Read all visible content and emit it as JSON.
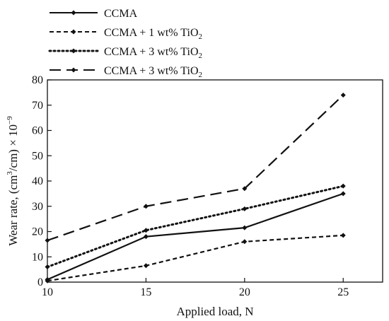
{
  "chart_data": {
    "type": "line",
    "xlabel": "Applied load, N",
    "ylabel_parts": [
      "Wear rate, (cm",
      "3",
      "/cm) × 10",
      "−9"
    ],
    "x": [
      10,
      15,
      20,
      25
    ],
    "xlim": [
      10,
      27
    ],
    "ylim": [
      0,
      80
    ],
    "xticks": [
      "10",
      "15",
      "20",
      "25"
    ],
    "yticks": [
      "0",
      "10",
      "20",
      "30",
      "40",
      "50",
      "60",
      "70",
      "80"
    ],
    "grid": false,
    "legend_position": "top-left, above plot",
    "series": [
      {
        "name": "CCMA",
        "name_parts": [
          "CCMA",
          "",
          ""
        ],
        "values": [
          1,
          18,
          21.5,
          35
        ],
        "style": "solid"
      },
      {
        "name": "CCMA + 1 wt% TiO2",
        "name_parts": [
          "CCMA + 1 wt% TiO",
          "2",
          ""
        ],
        "values": [
          0.5,
          6.5,
          16,
          18.5
        ],
        "style": "short-dash"
      },
      {
        "name": "CCMA + 3 wt% TiO2",
        "name_parts": [
          "CCMA + 3 wt% TiO",
          "2",
          ""
        ],
        "values": [
          6,
          20.5,
          29,
          38
        ],
        "style": "dotted"
      },
      {
        "name": "CCMA + 3 wt% TiO2",
        "name_parts": [
          "CCMA + 3 wt% TiO",
          "2",
          ""
        ],
        "values": [
          16.5,
          30,
          37,
          74
        ],
        "style": "long-dash"
      }
    ]
  }
}
